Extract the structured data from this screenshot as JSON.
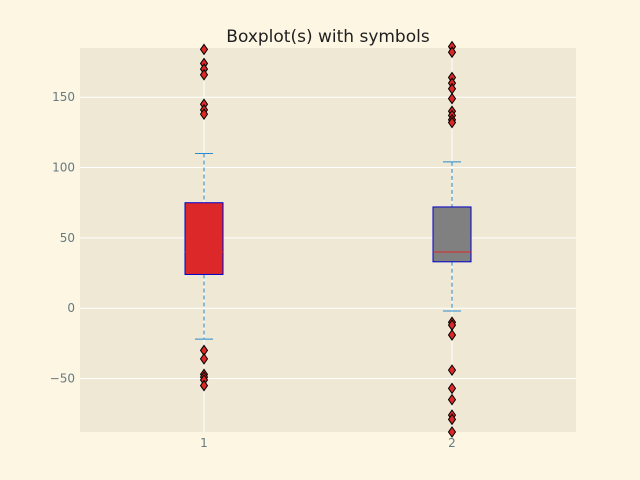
{
  "chart_data": {
    "type": "boxplot",
    "title": "Boxplot(s) with symbols",
    "xlabel": "",
    "ylabel": "",
    "categories": [
      "1",
      "2"
    ],
    "ylim": [
      -88,
      185
    ],
    "yticks": [
      -50,
      0,
      50,
      100,
      150
    ],
    "ytick_labels": [
      "−50",
      "0",
      "50",
      "100",
      "150"
    ],
    "grid": true,
    "boxes": [
      {
        "category": "1",
        "whisker_low": -22,
        "q1": 24,
        "median": 40,
        "q3": 75,
        "whisker_high": 110,
        "fliers": [
          184,
          174,
          170,
          166,
          145,
          141,
          138,
          -30,
          -36,
          -47,
          -49,
          -51,
          -55
        ],
        "box_color": "#dc2828"
      },
      {
        "category": "2",
        "whisker_low": -2,
        "q1": 33,
        "median": 40,
        "q3": 72,
        "whisker_high": 104,
        "fliers": [
          186,
          182,
          164,
          160,
          156,
          149,
          140,
          137,
          134,
          132,
          -10,
          -12,
          -19,
          -44,
          -57,
          -65,
          -76,
          -79,
          -88
        ],
        "box_color": "#808080"
      }
    ],
    "colors": {
      "axes_bg": "#eee8d5",
      "figure_bg": "#fdf6e3",
      "grid": "#ffffff",
      "box_edge": "#0000cc",
      "median": "#dc2828",
      "whisker": "#268bd2",
      "flier_fill": "#dc2828",
      "flier_edge": "#000000"
    }
  }
}
